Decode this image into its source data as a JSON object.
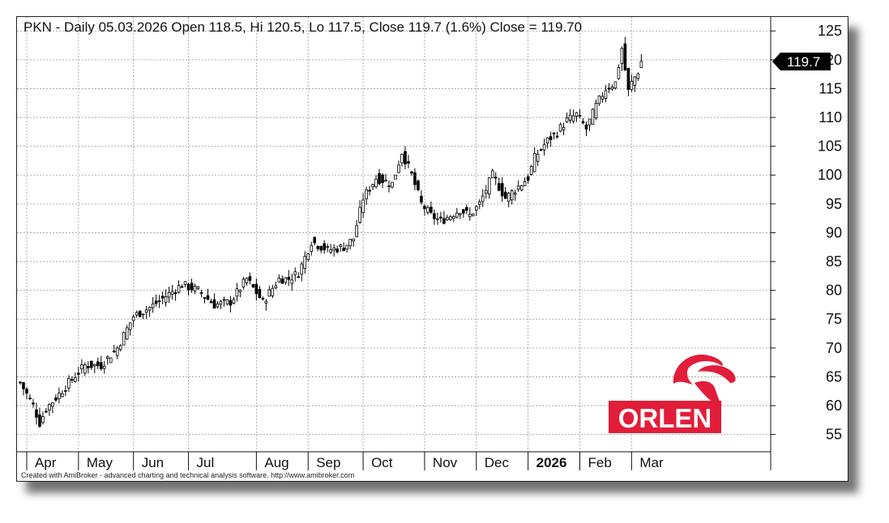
{
  "header": {
    "title": "PKN - Daily 05.03.2026 Open 118.5, Hi 120.5, Lo 117.5, Close 119.7 (1.6%) Close = 119.70"
  },
  "price_marker": "119.7",
  "footer": "Created with AmiBroker - advanced charting and technical analysis software. http://www.amibroker.com",
  "logo": {
    "text": "ORLEN",
    "color": "#e21d39"
  },
  "colors": {
    "candle": "#000000",
    "grid": "#9a9a9a",
    "marker_bg": "#000000",
    "marker_text": "#ffffff"
  },
  "chart_data": {
    "type": "candlestick",
    "title": "PKN - Daily 05.03.2026 Open 118.5, Hi 120.5, Lo 117.5, Close 119.7 (1.6%) Close = 119.70",
    "ylim": [
      52,
      127
    ],
    "yticks": [
      55,
      60,
      65,
      70,
      75,
      80,
      85,
      90,
      95,
      100,
      105,
      110,
      115,
      120,
      125
    ],
    "grid": true,
    "x_index_range": [
      0,
      232
    ],
    "months": [
      {
        "label": "Apr",
        "index": 2,
        "bold": false
      },
      {
        "label": "May",
        "index": 18,
        "bold": false
      },
      {
        "label": "Jun",
        "index": 35,
        "bold": false
      },
      {
        "label": "Jul",
        "index": 52,
        "bold": false
      },
      {
        "label": "Aug",
        "index": 73,
        "bold": false
      },
      {
        "label": "Sep",
        "index": 89,
        "bold": false
      },
      {
        "label": "Oct",
        "index": 106,
        "bold": false
      },
      {
        "label": "Nov",
        "index": 125,
        "bold": false
      },
      {
        "label": "Dec",
        "index": 141,
        "bold": false
      },
      {
        "label": "2026",
        "index": 157,
        "bold": true
      },
      {
        "label": "Feb",
        "index": 173,
        "bold": false
      },
      {
        "label": "Mar",
        "index": 189,
        "bold": false
      }
    ],
    "series": [
      {
        "index": [
          0,
          4,
          6,
          8,
          12,
          15,
          20,
          25,
          30,
          35,
          40,
          45,
          50,
          55,
          60,
          65,
          70,
          75,
          80,
          83,
          86,
          90,
          95,
          100,
          103,
          106,
          110,
          115,
          118,
          121,
          124,
          127,
          130,
          133,
          136,
          139,
          142,
          146,
          150,
          154,
          157,
          159,
          161,
          163,
          166,
          169,
          172,
          175,
          178,
          181,
          184,
          186,
          188,
          189,
          190,
          191,
          192
        ],
        "close": [
          64.0,
          60.0,
          57.0,
          59.5,
          62.0,
          64.0,
          67.0,
          67.0,
          70.0,
          75.5,
          77.0,
          79.0,
          81.0,
          80.0,
          77.5,
          78.0,
          82.0,
          78.0,
          82.0,
          82.0,
          83.0,
          88.5,
          87.0,
          87.5,
          89.0,
          96.0,
          99.5,
          98.5,
          104.0,
          100.0,
          95.0,
          93.0,
          92.0,
          93.0,
          94.0,
          93.0,
          95.0,
          100.0,
          96.0,
          98.0,
          99.5,
          103.0,
          104.5,
          106.0,
          107.5,
          109.5,
          110.5,
          108.0,
          112.0,
          115.0,
          116.0,
          122.0,
          114.5,
          116.0,
          117.0,
          118.0,
          119.7
        ]
      }
    ]
  }
}
